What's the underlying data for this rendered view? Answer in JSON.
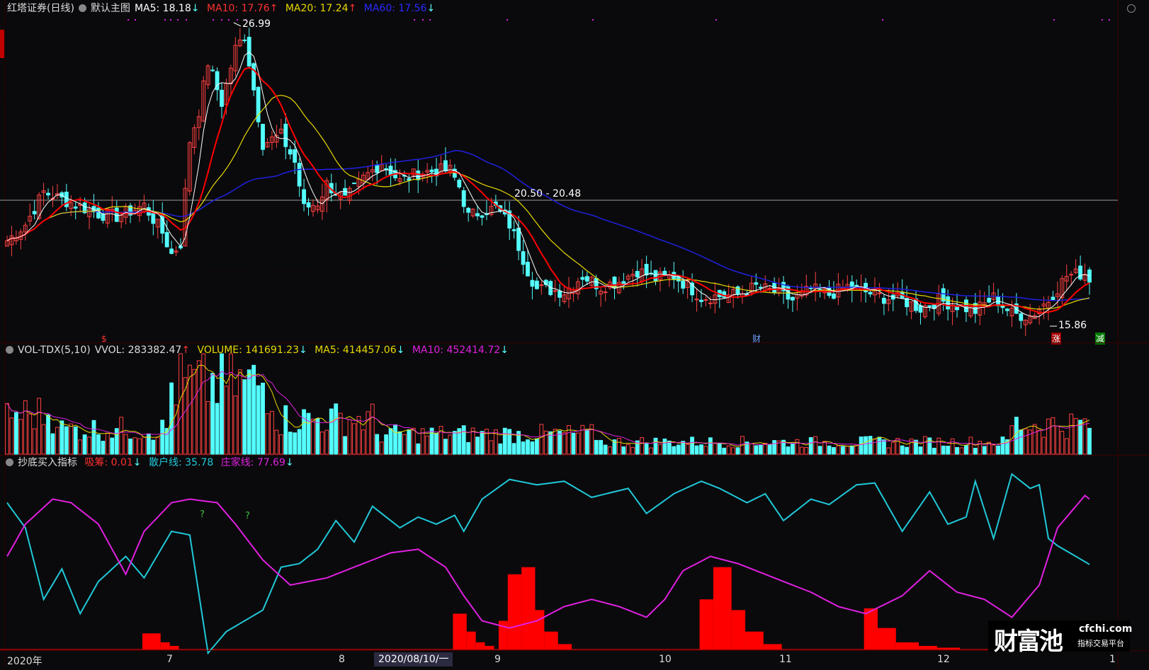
{
  "main_header": {
    "stock_name": "红塔证券(日线)",
    "template": "默认主图",
    "ma5": "MA5: 18.18",
    "ma5_arrow": "↓",
    "ma10": "MA10: 17.76",
    "ma10_arrow": "↑",
    "ma20": "MA20: 17.24",
    "ma20_arrow": "↑",
    "ma60": "MA60: 17.56",
    "ma60_arrow": "↓"
  },
  "price_annotations": {
    "high": "26.99",
    "low": "15.86",
    "crosshair": "20.50 - 20.48"
  },
  "event_markers": {
    "s_marker": "$",
    "cai_marker": "财",
    "zhang_marker": "涨",
    "jian_marker": "减"
  },
  "vol_header": {
    "name": "VOL-TDX(5,10)",
    "vvol": "VVOL: 283382.47",
    "vvol_arrow": "↑",
    "volume": "VOLUME: 141691.23",
    "volume_arrow": "↓",
    "ma5": "MA5: 414457.06",
    "ma5_arrow": "↓",
    "ma10": "MA10: 452414.72",
    "ma10_arrow": "↓"
  },
  "ind_header": {
    "name": "抄底买入指标",
    "xichou": "吸筹: 0.01",
    "xichou_arrow": "↓",
    "sanhu": "散户线: 35.78",
    "zhuangjia": "庄家线: 77.69",
    "zhuangjia_arrow": "↓"
  },
  "question_marks": [
    "?",
    "?"
  ],
  "date_axis": {
    "year": "2020年",
    "m7": "7",
    "m8": "8",
    "cursor_date": "2020/08/10/一",
    "m9": "9",
    "m10": "10",
    "m11": "11",
    "m12": "12",
    "m1": "1"
  },
  "watermark": {
    "logo": "财富池",
    "domain": "cfchi.com",
    "tagline": "指标交易平台"
  },
  "colors": {
    "background": "#0a0a0c",
    "up": "#ff4040",
    "down": "#54ffff",
    "ma5": "#ffffff",
    "ma10": "#ff0000",
    "ma20": "#e8d800",
    "ma60": "#2020e0",
    "vol_ma10": "#e020e0",
    "sanhu": "#20c8d8",
    "zhuangjia": "#e020e0",
    "xichou": "#ff0000"
  }
}
